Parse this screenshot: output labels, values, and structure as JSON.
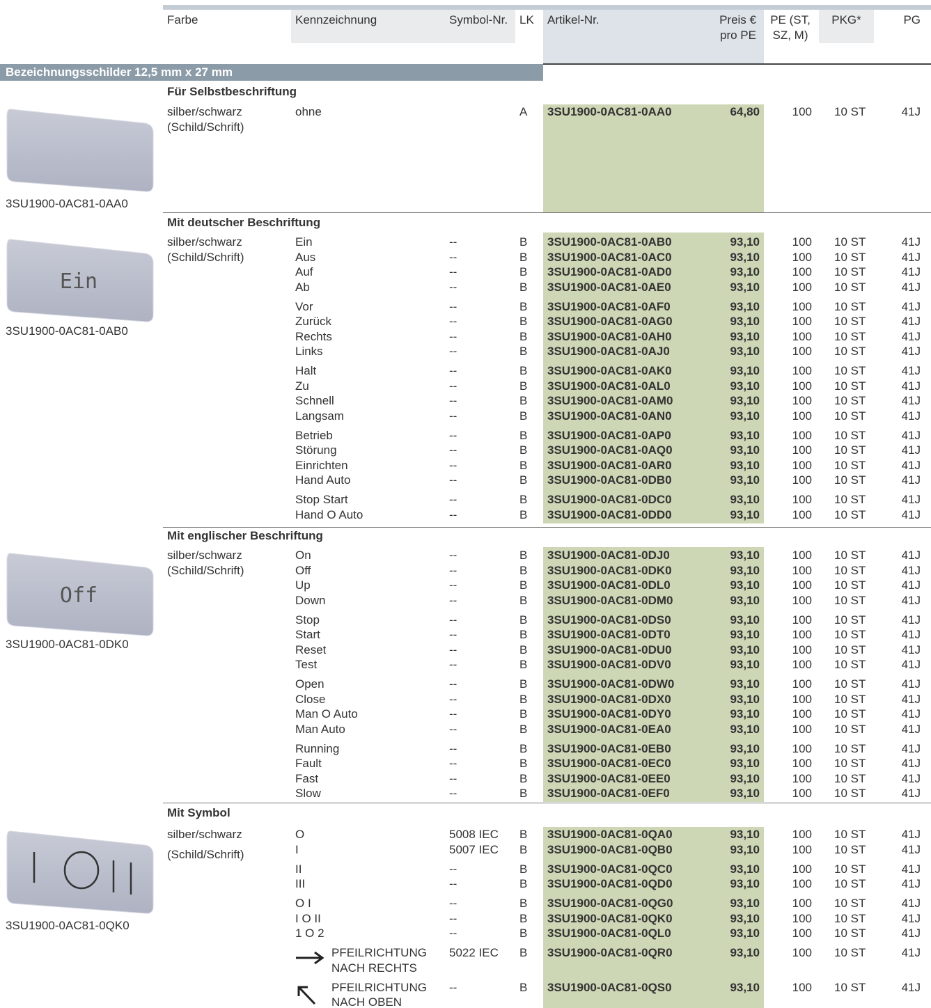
{
  "header": {
    "columns": [
      "Farbe",
      "Kennzeichnung",
      "Symbol-Nr.",
      "LK",
      "Artikel-Nr.",
      "Preis €\npro PE",
      "PE (ST,\nSZ, M)",
      "PKG*",
      "PG"
    ]
  },
  "section_title": "Bezeichnungsschilder 12,5 mm x 27 mm",
  "groups": [
    {
      "title": "Für Selbstbeschriftung",
      "image_caption": "3SU1900-0AC81-0AA0",
      "color": [
        "silber/schwarz",
        "(Schild/Schrift)"
      ],
      "blocks": [
        [
          [
            "ohne",
            null,
            "A",
            "3SU1900-0AC81-0AA0",
            "64,80",
            "100",
            "10 ST",
            "41J"
          ]
        ]
      ]
    },
    {
      "title": "Mit deutscher Beschriftung",
      "image_caption": "3SU1900-0AC81-0AB0",
      "image_label": "Ein",
      "color": [
        "silber/schwarz",
        "(Schild/Schrift)"
      ],
      "blocks": [
        [
          [
            "Ein",
            "--",
            "B",
            "3SU1900-0AC81-0AB0",
            "93,10",
            "100",
            "10 ST",
            "41J"
          ],
          [
            "Aus",
            "--",
            "B",
            "3SU1900-0AC81-0AC0",
            "93,10",
            "100",
            "10 ST",
            "41J"
          ],
          [
            "Auf",
            "--",
            "B",
            "3SU1900-0AC81-0AD0",
            "93,10",
            "100",
            "10 ST",
            "41J"
          ],
          [
            "Ab",
            "--",
            "B",
            "3SU1900-0AC81-0AE0",
            "93,10",
            "100",
            "10 ST",
            "41J"
          ]
        ],
        [
          [
            "Vor",
            "--",
            "B",
            "3SU1900-0AC81-0AF0",
            "93,10",
            "100",
            "10 ST",
            "41J"
          ],
          [
            "Zurück",
            "--",
            "B",
            "3SU1900-0AC81-0AG0",
            "93,10",
            "100",
            "10 ST",
            "41J"
          ],
          [
            "Rechts",
            "--",
            "B",
            "3SU1900-0AC81-0AH0",
            "93,10",
            "100",
            "10 ST",
            "41J"
          ],
          [
            "Links",
            "--",
            "B",
            "3SU1900-0AC81-0AJ0",
            "93,10",
            "100",
            "10 ST",
            "41J"
          ]
        ],
        [
          [
            "Halt",
            "--",
            "B",
            "3SU1900-0AC81-0AK0",
            "93,10",
            "100",
            "10 ST",
            "41J"
          ],
          [
            "Zu",
            "--",
            "B",
            "3SU1900-0AC81-0AL0",
            "93,10",
            "100",
            "10 ST",
            "41J"
          ],
          [
            "Schnell",
            "--",
            "B",
            "3SU1900-0AC81-0AM0",
            "93,10",
            "100",
            "10 ST",
            "41J"
          ],
          [
            "Langsam",
            "--",
            "B",
            "3SU1900-0AC81-0AN0",
            "93,10",
            "100",
            "10 ST",
            "41J"
          ]
        ],
        [
          [
            "Betrieb",
            "--",
            "B",
            "3SU1900-0AC81-0AP0",
            "93,10",
            "100",
            "10 ST",
            "41J"
          ],
          [
            "Störung",
            "--",
            "B",
            "3SU1900-0AC81-0AQ0",
            "93,10",
            "100",
            "10 ST",
            "41J"
          ],
          [
            "Einrichten",
            "--",
            "B",
            "3SU1900-0AC81-0AR0",
            "93,10",
            "100",
            "10 ST",
            "41J"
          ],
          [
            "Hand Auto",
            "--",
            "B",
            "3SU1900-0AC81-0DB0",
            "93,10",
            "100",
            "10 ST",
            "41J"
          ]
        ],
        [
          [
            "Stop Start",
            "--",
            "B",
            "3SU1900-0AC81-0DC0",
            "93,10",
            "100",
            "10 ST",
            "41J"
          ],
          [
            "Hand O Auto",
            "--",
            "B",
            "3SU1900-0AC81-0DD0",
            "93,10",
            "100",
            "10 ST",
            "41J"
          ]
        ]
      ]
    },
    {
      "title": "Mit englischer Beschriftung",
      "image_caption": "3SU1900-0AC81-0DK0",
      "image_label": "Off",
      "color": [
        "silber/schwarz",
        "(Schild/Schrift)"
      ],
      "blocks": [
        [
          [
            "On",
            "--",
            "B",
            "3SU1900-0AC81-0DJ0",
            "93,10",
            "100",
            "10 ST",
            "41J"
          ],
          [
            "Off",
            "--",
            "B",
            "3SU1900-0AC81-0DK0",
            "93,10",
            "100",
            "10 ST",
            "41J"
          ],
          [
            "Up",
            "--",
            "B",
            "3SU1900-0AC81-0DL0",
            "93,10",
            "100",
            "10 ST",
            "41J"
          ],
          [
            "Down",
            "--",
            "B",
            "3SU1900-0AC81-0DM0",
            "93,10",
            "100",
            "10 ST",
            "41J"
          ]
        ],
        [
          [
            "Stop",
            "--",
            "B",
            "3SU1900-0AC81-0DS0",
            "93,10",
            "100",
            "10 ST",
            "41J"
          ],
          [
            "Start",
            "--",
            "B",
            "3SU1900-0AC81-0DT0",
            "93,10",
            "100",
            "10 ST",
            "41J"
          ],
          [
            "Reset",
            "--",
            "B",
            "3SU1900-0AC81-0DU0",
            "93,10",
            "100",
            "10 ST",
            "41J"
          ],
          [
            "Test",
            "--",
            "B",
            "3SU1900-0AC81-0DV0",
            "93,10",
            "100",
            "10 ST",
            "41J"
          ]
        ],
        [
          [
            "Open",
            "--",
            "B",
            "3SU1900-0AC81-0DW0",
            "93,10",
            "100",
            "10 ST",
            "41J"
          ],
          [
            "Close",
            "--",
            "B",
            "3SU1900-0AC81-0DX0",
            "93,10",
            "100",
            "10 ST",
            "41J"
          ],
          [
            "Man O Auto",
            "--",
            "B",
            "3SU1900-0AC81-0DY0",
            "93,10",
            "100",
            "10 ST",
            "41J"
          ],
          [
            "Man Auto",
            "--",
            "B",
            "3SU1900-0AC81-0EA0",
            "93,10",
            "100",
            "10 ST",
            "41J"
          ]
        ],
        [
          [
            "Running",
            "--",
            "B",
            "3SU1900-0AC81-0EB0",
            "93,10",
            "100",
            "10 ST",
            "41J"
          ],
          [
            "Fault",
            "--",
            "B",
            "3SU1900-0AC81-0EC0",
            "93,10",
            "100",
            "10 ST",
            "41J"
          ],
          [
            "Fast",
            "--",
            "B",
            "3SU1900-0AC81-0EE0",
            "93,10",
            "100",
            "10 ST",
            "41J"
          ],
          [
            "Slow",
            "--",
            "B",
            "3SU1900-0AC81-0EF0",
            "93,10",
            "100",
            "10 ST",
            "41J"
          ]
        ]
      ]
    },
    {
      "title": "Mit Symbol",
      "image_caption": "3SU1900-0AC81-0QK0",
      "color": [
        "silber/schwarz",
        "(Schild/Schrift)"
      ],
      "blocks": [
        [
          [
            "O",
            "5008 IEC",
            "B",
            "3SU1900-0AC81-0QA0",
            "93,10",
            "100",
            "10 ST",
            "41J"
          ],
          [
            "I",
            "5007 IEC",
            "B",
            "3SU1900-0AC81-0QB0",
            "93,10",
            "100",
            "10 ST",
            "41J"
          ]
        ],
        [
          [
            "II",
            "--",
            "B",
            "3SU1900-0AC81-0QC0",
            "93,10",
            "100",
            "10 ST",
            "41J"
          ],
          [
            "III",
            "--",
            "B",
            "3SU1900-0AC81-0QD0",
            "93,10",
            "100",
            "10 ST",
            "41J"
          ]
        ],
        [
          [
            "O I",
            "--",
            "B",
            "3SU1900-0AC81-0QG0",
            "93,10",
            "100",
            "10 ST",
            "41J"
          ],
          [
            "I O II",
            "--",
            "B",
            "3SU1900-0AC81-0QK0",
            "93,10",
            "100",
            "10 ST",
            "41J"
          ],
          [
            "1 O 2",
            "--",
            "B",
            "3SU1900-0AC81-0QL0",
            "93,10",
            "100",
            "10 ST",
            "41J"
          ]
        ],
        [
          [
            "PFEILRICHTUNG\nNACH RECHTS",
            "5022 IEC",
            "B",
            "3SU1900-0AC81-0QR0",
            "93,10",
            "100",
            "10 ST",
            "41J"
          ]
        ],
        [
          [
            "PFEILRICHTUNG\nNACH OBEN",
            "--",
            "B",
            "3SU1900-0AC81-0QS0",
            "93,10",
            "100",
            "10 ST",
            "41J"
          ]
        ]
      ]
    }
  ]
}
